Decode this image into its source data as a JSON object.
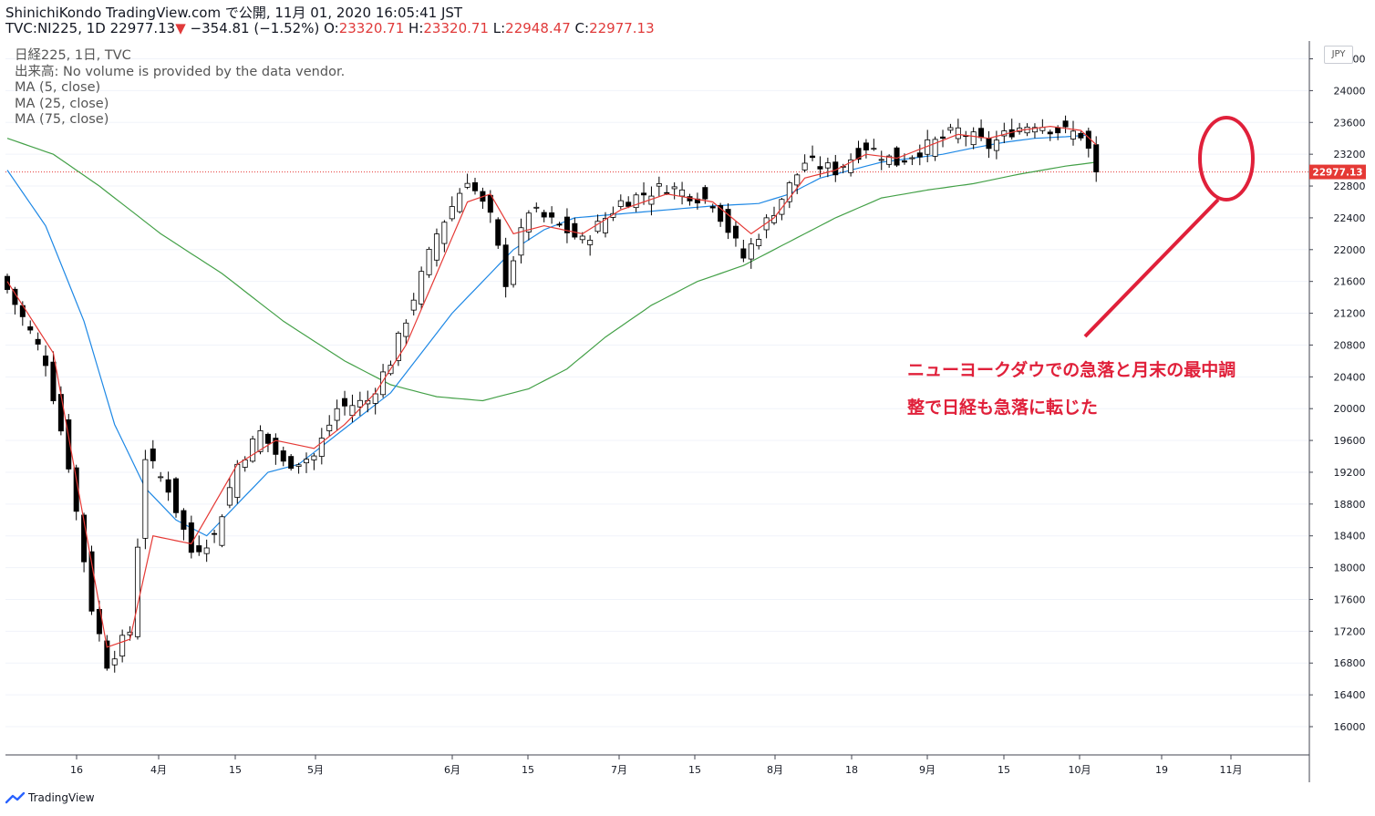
{
  "header": {
    "line1": "ShinichiKondo TradingView.com で公開, 11月 01, 2020 16:05:41 JST",
    "symbol": "TVC:NI225, 1D",
    "last": "22977.13",
    "arrow": "▼",
    "change": "−354.81 (−1.52%)",
    "o_label": "O:",
    "o_value": "23320.71",
    "h_label": "H:",
    "h_value": "23320.71",
    "l_label": "L:",
    "l_value": "22948.47",
    "c_label": "C:",
    "c_value": "22977.13"
  },
  "legend": {
    "title": "日経225, 1日, TVC",
    "volume": "出来高: No volume is provided by the data vendor.",
    "ma5": "MA (5, close)",
    "ma25": "MA (25, close)",
    "ma75": "MA (75, close)"
  },
  "currency": "JPY",
  "price_tag": "22977.13",
  "annotation": {
    "line1": "ニューヨークダウでの急落と月末の最中調",
    "line2": "整で日経も急落に転じた"
  },
  "brand": "TradingView",
  "colors": {
    "up": "#ffffff",
    "down": "#000000",
    "ma5": "#e53935",
    "ma25": "#1e88e5",
    "ma75": "#43a047",
    "annotation": "#e0203a"
  },
  "chart_data": {
    "type": "candlestick",
    "ylim": [
      15600,
      24500
    ],
    "y_ticks": [
      16000,
      16400,
      16800,
      17200,
      17600,
      18000,
      18400,
      18800,
      19200,
      19600,
      20000,
      20400,
      20800,
      21200,
      21600,
      22000,
      22400,
      22800,
      23200,
      23600,
      24000,
      24400
    ],
    "x_ticks": [
      "16",
      "4月",
      "15",
      "5月",
      "6月",
      "15",
      "7月",
      "15",
      "8月",
      "18",
      "9月",
      "15",
      "10月",
      "19",
      "11月"
    ],
    "last_price": 22977.13,
    "close_anchors": [
      [
        0,
        21500
      ],
      [
        5,
        20600
      ],
      [
        8,
        19300
      ],
      [
        11,
        17500
      ],
      [
        13,
        16800
      ],
      [
        16,
        17200
      ],
      [
        18,
        19400
      ],
      [
        21,
        19000
      ],
      [
        24,
        18200
      ],
      [
        27,
        18400
      ],
      [
        30,
        19300
      ],
      [
        33,
        19700
      ],
      [
        36,
        19300
      ],
      [
        40,
        19400
      ],
      [
        43,
        20000
      ],
      [
        47,
        20100
      ],
      [
        50,
        20600
      ],
      [
        53,
        21400
      ],
      [
        56,
        22200
      ],
      [
        60,
        22900
      ],
      [
        63,
        22400
      ],
      [
        65,
        21600
      ],
      [
        68,
        22500
      ],
      [
        72,
        22300
      ],
      [
        75,
        22100
      ],
      [
        80,
        22600
      ],
      [
        86,
        22800
      ],
      [
        92,
        22600
      ],
      [
        96,
        21900
      ],
      [
        100,
        22500
      ],
      [
        104,
        23100
      ],
      [
        108,
        23000
      ],
      [
        112,
        23300
      ],
      [
        116,
        23100
      ],
      [
        120,
        23300
      ],
      [
        124,
        23500
      ],
      [
        128,
        23300
      ],
      [
        131,
        23500
      ],
      [
        134,
        23600
      ],
      [
        137,
        23500
      ],
      [
        140,
        23450
      ],
      [
        141,
        23250
      ],
      [
        142,
        22977
      ]
    ],
    "ma_anchors": {
      "ma5": [
        [
          0,
          21600
        ],
        [
          6,
          20700
        ],
        [
          13,
          17000
        ],
        [
          16,
          17100
        ],
        [
          19,
          18400
        ],
        [
          24,
          18300
        ],
        [
          30,
          19300
        ],
        [
          35,
          19600
        ],
        [
          40,
          19500
        ],
        [
          44,
          19800
        ],
        [
          48,
          20200
        ],
        [
          52,
          20800
        ],
        [
          56,
          21700
        ],
        [
          60,
          22600
        ],
        [
          63,
          22700
        ],
        [
          66,
          22200
        ],
        [
          70,
          22300
        ],
        [
          75,
          22200
        ],
        [
          80,
          22500
        ],
        [
          86,
          22700
        ],
        [
          92,
          22600
        ],
        [
          97,
          22200
        ],
        [
          100,
          22400
        ],
        [
          104,
          22900
        ],
        [
          108,
          23000
        ],
        [
          112,
          23200
        ],
        [
          116,
          23150
        ],
        [
          120,
          23300
        ],
        [
          124,
          23450
        ],
        [
          128,
          23400
        ],
        [
          132,
          23500
        ],
        [
          136,
          23550
        ],
        [
          140,
          23500
        ],
        [
          142,
          23320
        ]
      ],
      "ma25": [
        [
          0,
          23000
        ],
        [
          5,
          22300
        ],
        [
          10,
          21100
        ],
        [
          14,
          19800
        ],
        [
          18,
          19000
        ],
        [
          22,
          18600
        ],
        [
          26,
          18400
        ],
        [
          30,
          18800
        ],
        [
          34,
          19200
        ],
        [
          38,
          19300
        ],
        [
          42,
          19600
        ],
        [
          46,
          19900
        ],
        [
          50,
          20200
        ],
        [
          54,
          20700
        ],
        [
          58,
          21200
        ],
        [
          62,
          21600
        ],
        [
          66,
          22000
        ],
        [
          70,
          22250
        ],
        [
          74,
          22400
        ],
        [
          80,
          22450
        ],
        [
          86,
          22500
        ],
        [
          92,
          22550
        ],
        [
          98,
          22580
        ],
        [
          102,
          22700
        ],
        [
          106,
          22900
        ],
        [
          110,
          23000
        ],
        [
          114,
          23100
        ],
        [
          118,
          23150
        ],
        [
          122,
          23200
        ],
        [
          126,
          23280
        ],
        [
          130,
          23350
        ],
        [
          134,
          23400
        ],
        [
          138,
          23420
        ],
        [
          141,
          23440
        ]
      ],
      "ma75": [
        [
          0,
          23400
        ],
        [
          6,
          23200
        ],
        [
          12,
          22800
        ],
        [
          20,
          22200
        ],
        [
          28,
          21700
        ],
        [
          36,
          21100
        ],
        [
          44,
          20600
        ],
        [
          50,
          20300
        ],
        [
          56,
          20150
        ],
        [
          62,
          20100
        ],
        [
          68,
          20250
        ],
        [
          73,
          20500
        ],
        [
          78,
          20900
        ],
        [
          84,
          21300
        ],
        [
          90,
          21600
        ],
        [
          96,
          21800
        ],
        [
          102,
          22100
        ],
        [
          108,
          22400
        ],
        [
          114,
          22650
        ],
        [
          120,
          22750
        ],
        [
          126,
          22830
        ],
        [
          132,
          22950
        ],
        [
          138,
          23050
        ],
        [
          142,
          23100
        ]
      ]
    }
  }
}
